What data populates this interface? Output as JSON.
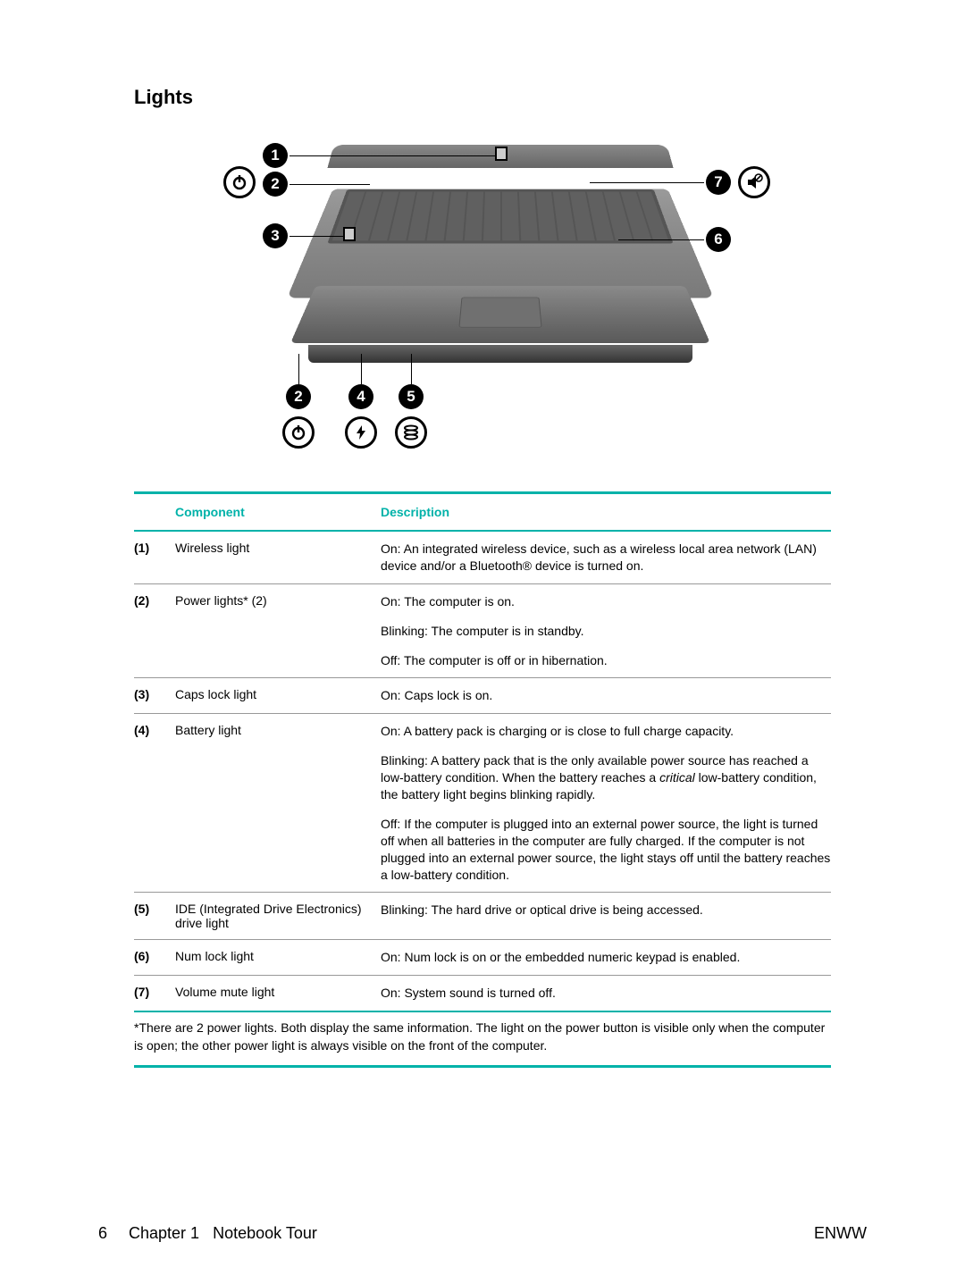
{
  "section_title": "Lights",
  "accent_color": "#00b2a9",
  "border_gray": "#999999",
  "text_color": "#000000",
  "table": {
    "headers": {
      "component": "Component",
      "description": "Description"
    },
    "rows": [
      {
        "num": "(1)",
        "component": "Wireless light",
        "description": [
          "On: An integrated wireless device, such as a wireless local area network (LAN) device and/or a Bluetooth® device is turned on."
        ]
      },
      {
        "num": "(2)",
        "component": "Power lights* (2)",
        "description": [
          "On: The computer is on.",
          "Blinking: The computer is in standby.",
          "Off: The computer is off or in hibernation."
        ]
      },
      {
        "num": "(3)",
        "component": "Caps lock light",
        "description": [
          "On: Caps lock is on."
        ]
      },
      {
        "num": "(4)",
        "component": "Battery light",
        "description": [
          "On: A battery pack is charging or is close to full charge capacity.",
          "Blinking: A battery pack that is the only available power source has reached a low-battery condition. When the battery reaches a <i>critical</i> low-battery condition, the battery light begins blinking rapidly.",
          "Off: If the computer is plugged into an external power source, the light is turned off when all batteries in the computer are fully charged. If the computer is not plugged into an external power source, the light stays off until the battery reaches a low-battery condition."
        ]
      },
      {
        "num": "(5)",
        "component": "IDE (Integrated Drive Electronics) drive light",
        "description": [
          "Blinking: The hard drive or optical drive is being accessed."
        ]
      },
      {
        "num": "(6)",
        "component": "Num lock light",
        "description": [
          "On: Num lock is on or the embedded numeric keypad is enabled."
        ]
      },
      {
        "num": "(7)",
        "component": "Volume mute light",
        "description": [
          "On: System sound is turned off."
        ]
      }
    ],
    "footnote": "*There are 2 power lights. Both display the same information. The light on the power button is visible only when the computer is open; the other power light is always visible on the front of the computer."
  },
  "callouts": {
    "b1": "1",
    "b2": "2",
    "b3": "3",
    "b4": "4",
    "b5": "5",
    "b6": "6",
    "b7": "7"
  },
  "footer": {
    "page_number": "6",
    "chapter": "Chapter 1",
    "title": "Notebook Tour",
    "lang": "ENWW"
  }
}
